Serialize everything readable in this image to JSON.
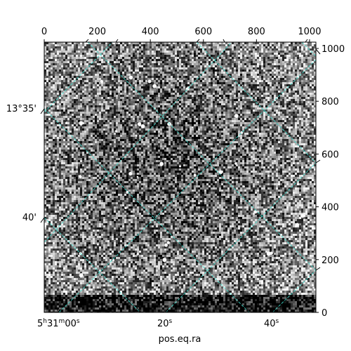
{
  "chart_data": {
    "type": "heatmap",
    "description_colormap": "gray",
    "pixel_axes": {
      "x_range": [
        0,
        1024
      ],
      "y_range": [
        0,
        1024
      ],
      "top_ticks": [
        0,
        200,
        400,
        600,
        800,
        1000
      ],
      "right_ticks": [
        0,
        200,
        400,
        600,
        800,
        1000
      ]
    },
    "world_axes": {
      "xlabel": "pos.eq.ra",
      "ra_tick_labels": [
        {
          "label": "5h31m00s",
          "parts": [
            "5",
            "h",
            "31",
            "m",
            "00",
            "s"
          ]
        },
        {
          "label": "20s",
          "parts": [
            "20",
            "s"
          ]
        },
        {
          "label": "40s",
          "parts": [
            "40",
            "s"
          ]
        }
      ],
      "dec_tick_labels": [
        "13°35'",
        "40'"
      ]
    },
    "grid": {
      "on": true,
      "color": "#40e0d0"
    },
    "frame_color": "#000000"
  }
}
